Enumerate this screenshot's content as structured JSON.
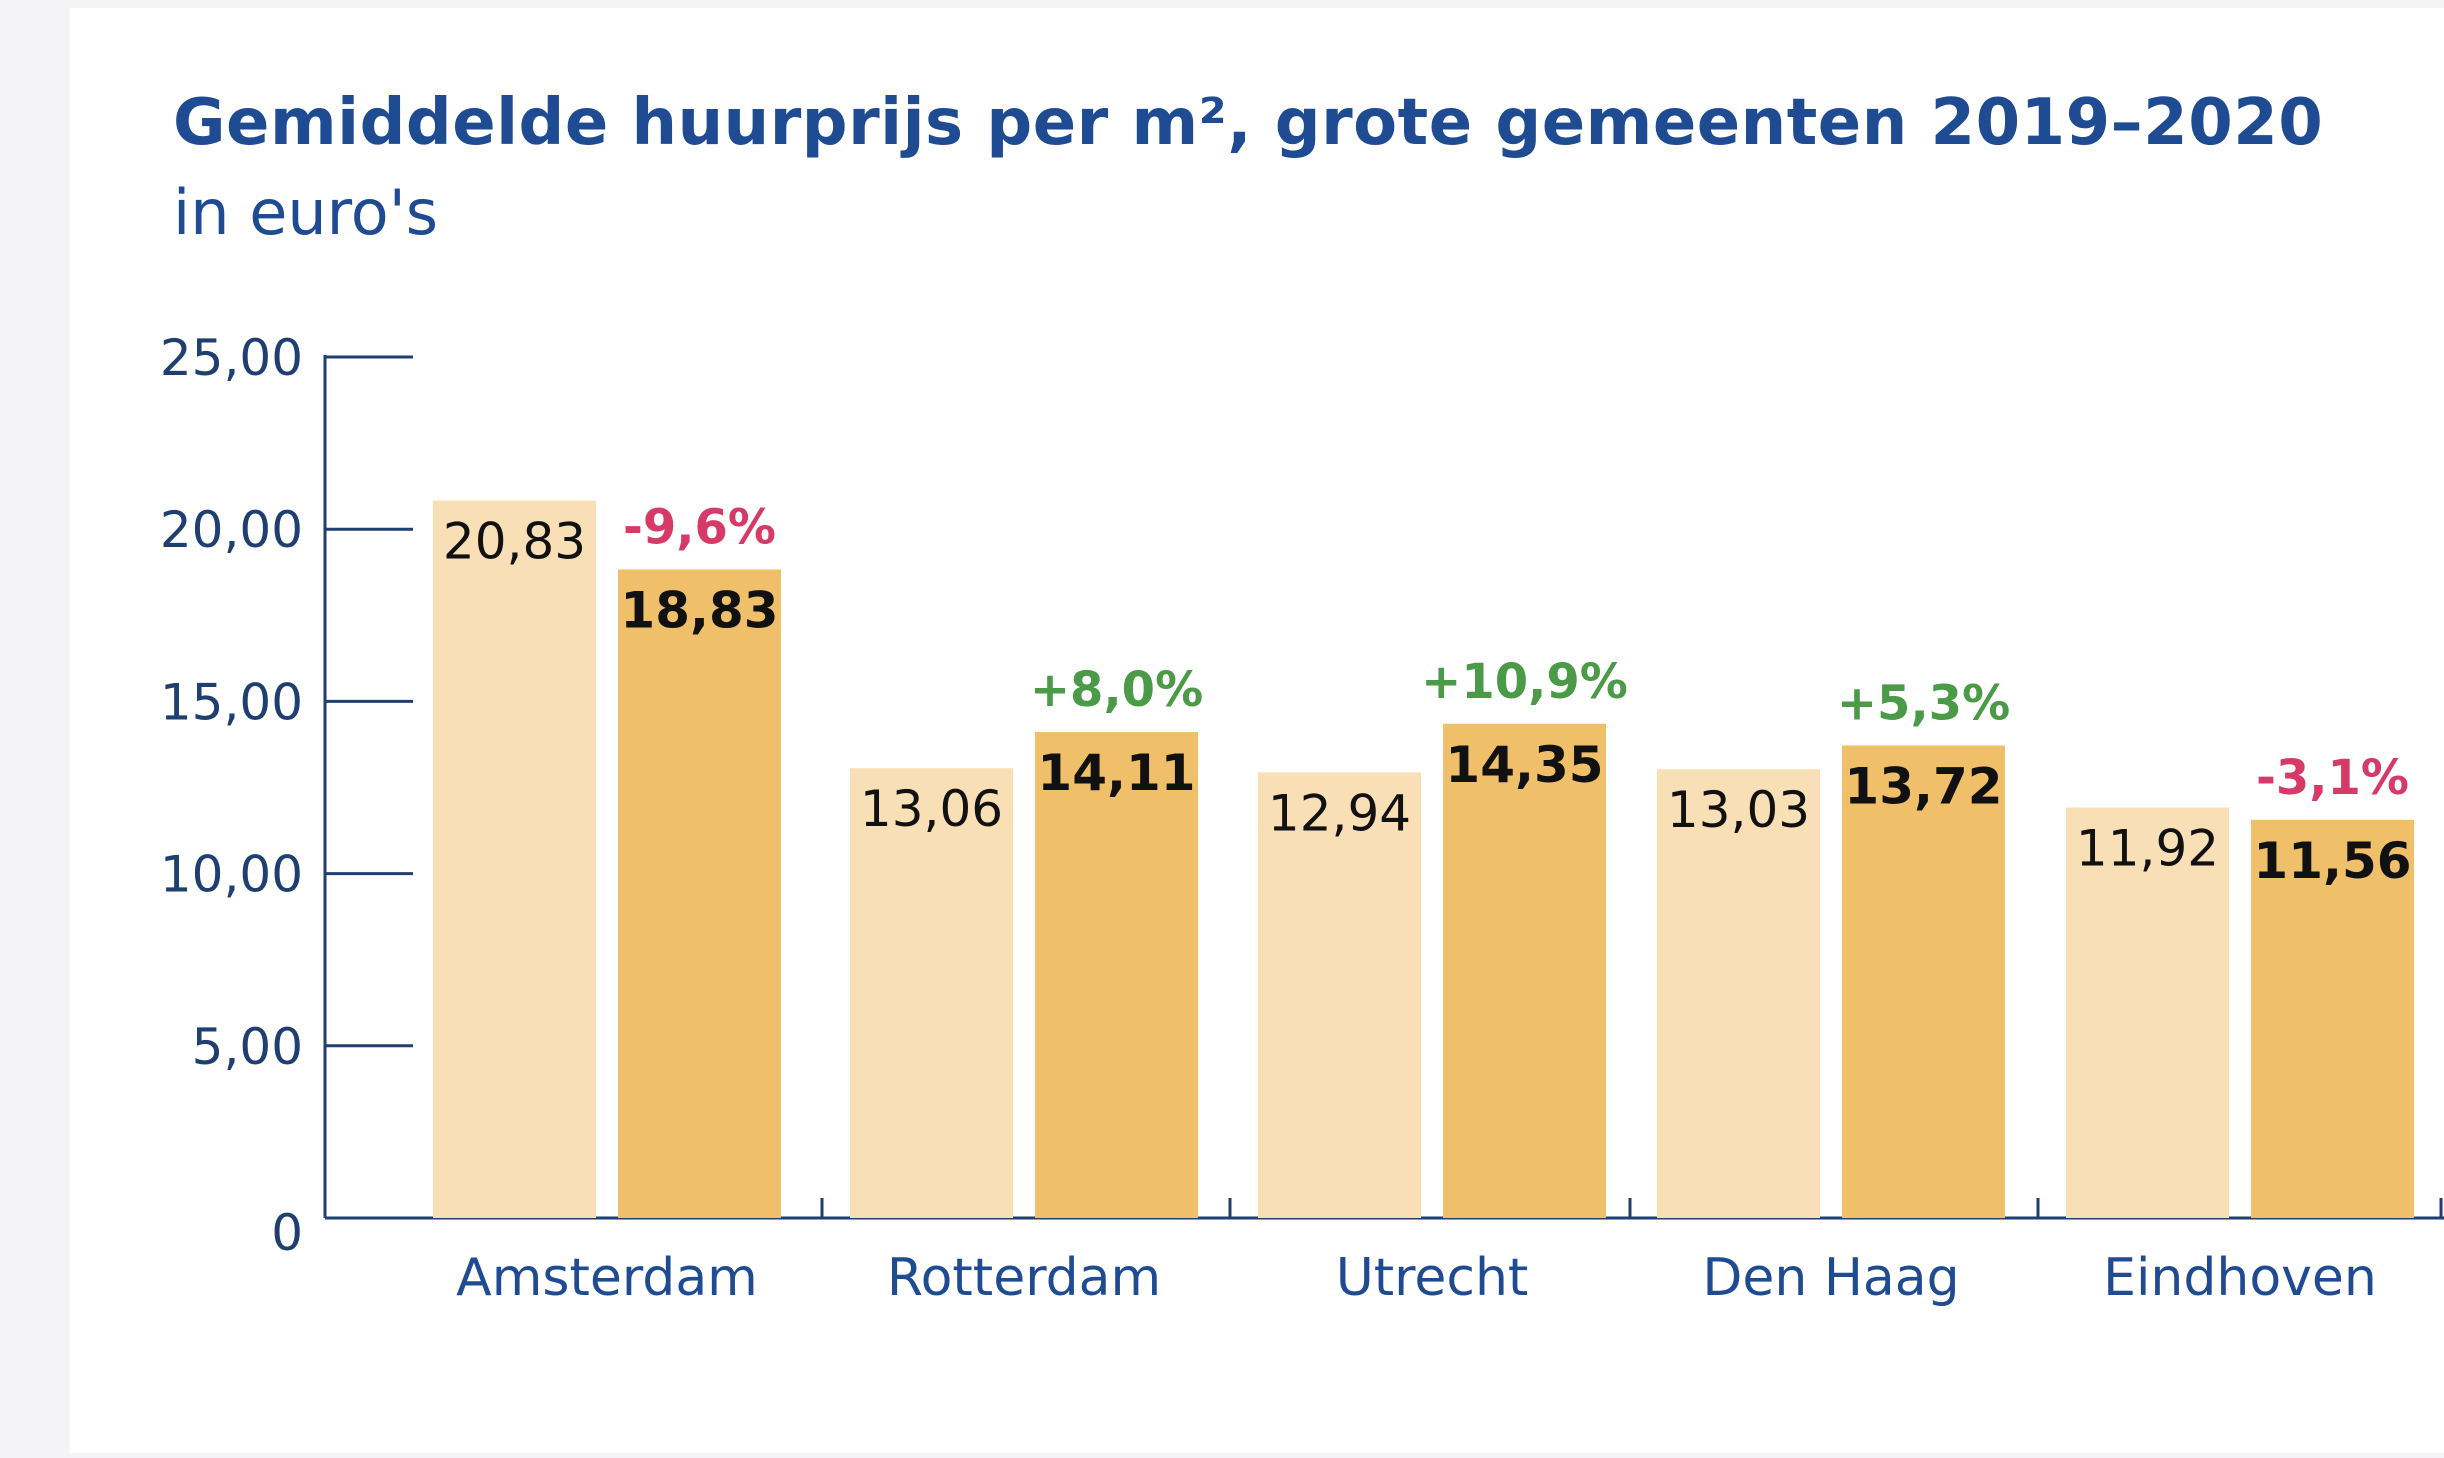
{
  "header": {
    "title": "Gemiddelde huurprijs per m², grote gemeenten 2019–2020",
    "subtitle": "in euro's"
  },
  "colors": {
    "bar_2019": "#f8dfb6",
    "bar_2020": "#f0bf6a",
    "axis": "#1f3f70",
    "positive": "#4a9a47",
    "negative": "#d63a66"
  },
  "chart_data": {
    "type": "bar",
    "title": "Gemiddelde huurprijs per m², grote gemeenten 2019–2020",
    "subtitle": "in euro's",
    "xlabel": "",
    "ylabel": "",
    "ylim": [
      0,
      25
    ],
    "yticks": [
      "0",
      "5,00",
      "10,00",
      "15,00",
      "20,00",
      "25,00"
    ],
    "categories": [
      "Amsterdam",
      "Rotterdam",
      "Utrecht",
      "Den Haag",
      "Eindhoven"
    ],
    "series": [
      {
        "values": [
          20.83,
          13.06,
          12.94,
          13.03,
          11.92
        ],
        "labels": [
          "20,83",
          "13,06",
          "12,94",
          "13,03",
          "11,92"
        ]
      },
      {
        "values": [
          18.83,
          14.11,
          14.35,
          13.72,
          11.56
        ],
        "labels": [
          "18,83",
          "14,11",
          "14,35",
          "13,72",
          "11,56"
        ]
      }
    ],
    "changes": [
      "-9,6%",
      "+8,0%",
      "+10,9%",
      "+5,3%",
      "-3,1%"
    ],
    "grid": false,
    "legend": "none"
  }
}
